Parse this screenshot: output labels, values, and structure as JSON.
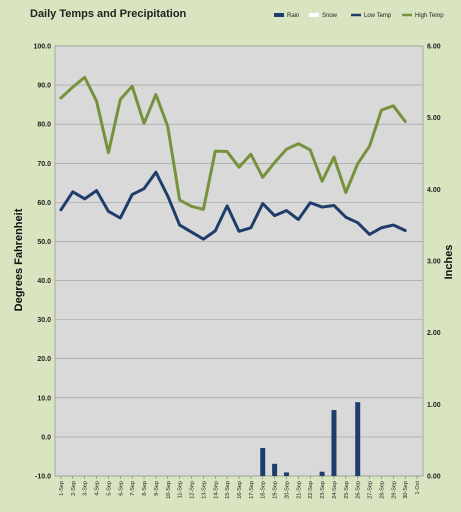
{
  "chart_data": {
    "type": "line",
    "title": "Daily Temps and Precipitation",
    "xlabel": "",
    "ylabel_left": "Degrees Fahrenheit",
    "ylabel_right": "Inches",
    "ylim_left": [
      -10,
      100
    ],
    "ylim_right": [
      0,
      6
    ],
    "legend_position": "top-right",
    "left_ticks": [
      "-10.0",
      "0.0",
      "10.0",
      "20.0",
      "30.0",
      "40.0",
      "50.0",
      "60.0",
      "70.0",
      "80.0",
      "90.0",
      "100.0"
    ],
    "right_ticks": [
      "0.00",
      "1.00",
      "2.00",
      "3.00",
      "4.00",
      "5.00",
      "6.00"
    ],
    "categories": [
      "1-Sep",
      "2-Sep",
      "3-Sep",
      "4-Sep",
      "5-Sep",
      "6-Sep",
      "7-Sep",
      "8-Sep",
      "9-Sep",
      "10-Sep",
      "11-Sep",
      "12-Sep",
      "13-Sep",
      "14-Sep",
      "15-Sep",
      "16-Sep",
      "17-Sep",
      "18-Sep",
      "19-Sep",
      "20-Sep",
      "21-Sep",
      "22-Sep",
      "23-Sep",
      "24-Sep",
      "25-Sep",
      "26-Sep",
      "27-Sep",
      "28-Sep",
      "29-Sep",
      "30-Sep",
      "1-Oct"
    ],
    "series": [
      {
        "name": "Rain",
        "axis": "right",
        "kind": "bar",
        "color": "#1f3d6b",
        "values": [
          0,
          0,
          0,
          0,
          0,
          0,
          0,
          0,
          0,
          0,
          0,
          0,
          0,
          0,
          0,
          0,
          0,
          0.39,
          0.17,
          0.05,
          0,
          0,
          0.06,
          0.92,
          0,
          1.03,
          0,
          0,
          0,
          0,
          null
        ]
      },
      {
        "name": "Snow",
        "axis": "right",
        "kind": "bar",
        "color": "#ffffff",
        "values": [
          0,
          0,
          0,
          0,
          0,
          0,
          0,
          0,
          0,
          0,
          0,
          0,
          0,
          0,
          0,
          0,
          0,
          0,
          0,
          0,
          0,
          0,
          0,
          0,
          0,
          0,
          0,
          0,
          0,
          0,
          null
        ]
      },
      {
        "name": "Low Temp",
        "axis": "left",
        "kind": "line",
        "color": "#1f3d6b",
        "values": [
          58.1,
          62.7,
          60.9,
          63.0,
          57.7,
          56.0,
          62.0,
          63.5,
          67.7,
          61.6,
          54.2,
          52.4,
          50.6,
          52.7,
          59.1,
          52.6,
          53.5,
          59.7,
          56.6,
          57.9,
          55.6,
          59.9,
          58.8,
          59.2,
          56.2,
          54.8,
          51.8,
          53.5,
          54.2,
          52.8,
          null
        ]
      },
      {
        "name": "High Temp",
        "axis": "left",
        "kind": "line",
        "color": "#76923c",
        "values": [
          86.7,
          89.5,
          92.0,
          85.9,
          72.7,
          86.3,
          89.7,
          80.2,
          87.6,
          79.4,
          60.6,
          59.0,
          58.2,
          73.1,
          73.0,
          69.0,
          72.3,
          66.4,
          70.2,
          73.6,
          75.0,
          73.4,
          65.4,
          71.6,
          62.5,
          69.9,
          74.4,
          83.6,
          84.7,
          80.7,
          null
        ]
      }
    ]
  }
}
